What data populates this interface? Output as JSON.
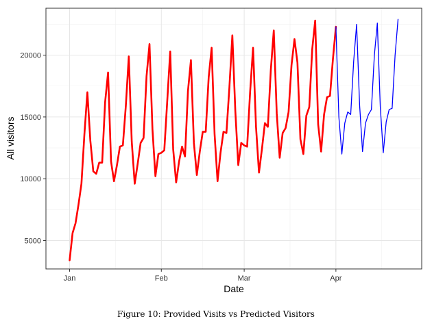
{
  "chart_data": {
    "type": "line",
    "xlabel": "Date",
    "ylabel": "All visitors",
    "x_tick_labels": [
      "Jan",
      "Feb",
      "Mar",
      "Apr"
    ],
    "x_ticks": [
      "2021-01-01",
      "2021-02-01",
      "2021-03-01",
      "2021-04-01"
    ],
    "xlim": [
      "2020-12-24",
      "2021-04-30"
    ],
    "y_tick_labels": [
      "5000",
      "10000",
      "15000",
      "20000"
    ],
    "y_ticks": [
      5000,
      10000,
      15000,
      20000
    ],
    "ylim": [
      2700,
      23800
    ],
    "grid": true,
    "series": [
      {
        "color": "#ff0000",
        "x": [
          "2021-01-01",
          "2021-01-02",
          "2021-01-03",
          "2021-01-04",
          "2021-01-05",
          "2021-01-06",
          "2021-01-07",
          "2021-01-08",
          "2021-01-09",
          "2021-01-10",
          "2021-01-11",
          "2021-01-12",
          "2021-01-13",
          "2021-01-14",
          "2021-01-15",
          "2021-01-16",
          "2021-01-17",
          "2021-01-18",
          "2021-01-19",
          "2021-01-20",
          "2021-01-21",
          "2021-01-22",
          "2021-01-23",
          "2021-01-24",
          "2021-01-25",
          "2021-01-26",
          "2021-01-27",
          "2021-01-28",
          "2021-01-29",
          "2021-01-30",
          "2021-01-31",
          "2021-02-01",
          "2021-02-02",
          "2021-02-03",
          "2021-02-04",
          "2021-02-05",
          "2021-02-06",
          "2021-02-07",
          "2021-02-08",
          "2021-02-09",
          "2021-02-10",
          "2021-02-11",
          "2021-02-12",
          "2021-02-13",
          "2021-02-14",
          "2021-02-15",
          "2021-02-16",
          "2021-02-17",
          "2021-02-18",
          "2021-02-19",
          "2021-02-20",
          "2021-02-21",
          "2021-02-22",
          "2021-02-23",
          "2021-02-24",
          "2021-02-25",
          "2021-02-26",
          "2021-02-27",
          "2021-02-28",
          "2021-03-01",
          "2021-03-02",
          "2021-03-03",
          "2021-03-04",
          "2021-03-05",
          "2021-03-06",
          "2021-03-07",
          "2021-03-08",
          "2021-03-09",
          "2021-03-10",
          "2021-03-11",
          "2021-03-12",
          "2021-03-13",
          "2021-03-14",
          "2021-03-15",
          "2021-03-16",
          "2021-03-17",
          "2021-03-18",
          "2021-03-19",
          "2021-03-20",
          "2021-03-21",
          "2021-03-22",
          "2021-03-23",
          "2021-03-24",
          "2021-03-25",
          "2021-03-26",
          "2021-03-27",
          "2021-03-28",
          "2021-03-29",
          "2021-03-30",
          "2021-03-31",
          "2021-04-01"
        ],
        "y": [
          3400,
          5600,
          6400,
          7900,
          9600,
          13600,
          17000,
          13100,
          10600,
          10400,
          11300,
          11300,
          16200,
          18600,
          11400,
          9800,
          11100,
          12600,
          12700,
          15900,
          19900,
          13000,
          9600,
          11200,
          12900,
          13300,
          18300,
          20900,
          14000,
          10200,
          12000,
          12100,
          12300,
          16300,
          20300,
          12400,
          9700,
          11400,
          12600,
          11800,
          17100,
          19600,
          12900,
          10300,
          12200,
          13800,
          13800,
          18200,
          20600,
          13600,
          9800,
          12100,
          13800,
          13700,
          17400,
          21600,
          15500,
          11100,
          12900,
          12700,
          12600,
          17000,
          20600,
          14200,
          10500,
          12400,
          14500,
          14200,
          18800,
          22000,
          15300,
          11700,
          13700,
          14100,
          15400,
          19200,
          21300,
          19400,
          13200,
          12000,
          15100,
          15800,
          20500,
          22800,
          14400,
          12200,
          15200,
          16600,
          16700,
          19700,
          22300
        ]
      },
      {
        "color": "#0000ff",
        "x": [
          "2021-04-01",
          "2021-04-02",
          "2021-04-03",
          "2021-04-04",
          "2021-04-05",
          "2021-04-06",
          "2021-04-07",
          "2021-04-08",
          "2021-04-09",
          "2021-04-10",
          "2021-04-11",
          "2021-04-12",
          "2021-04-13",
          "2021-04-14",
          "2021-04-15",
          "2021-04-16",
          "2021-04-17",
          "2021-04-18",
          "2021-04-19",
          "2021-04-20",
          "2021-04-21",
          "2021-04-22"
        ],
        "y": [
          22300,
          15000,
          12000,
          14500,
          15400,
          15200,
          19500,
          22500,
          16000,
          12200,
          14500,
          15200,
          15600,
          20000,
          22600,
          15800,
          12100,
          14600,
          15600,
          15700,
          20000,
          22900
        ]
      }
    ]
  },
  "caption": "Figure 10: Provided Visits vs Predicted Visitors"
}
